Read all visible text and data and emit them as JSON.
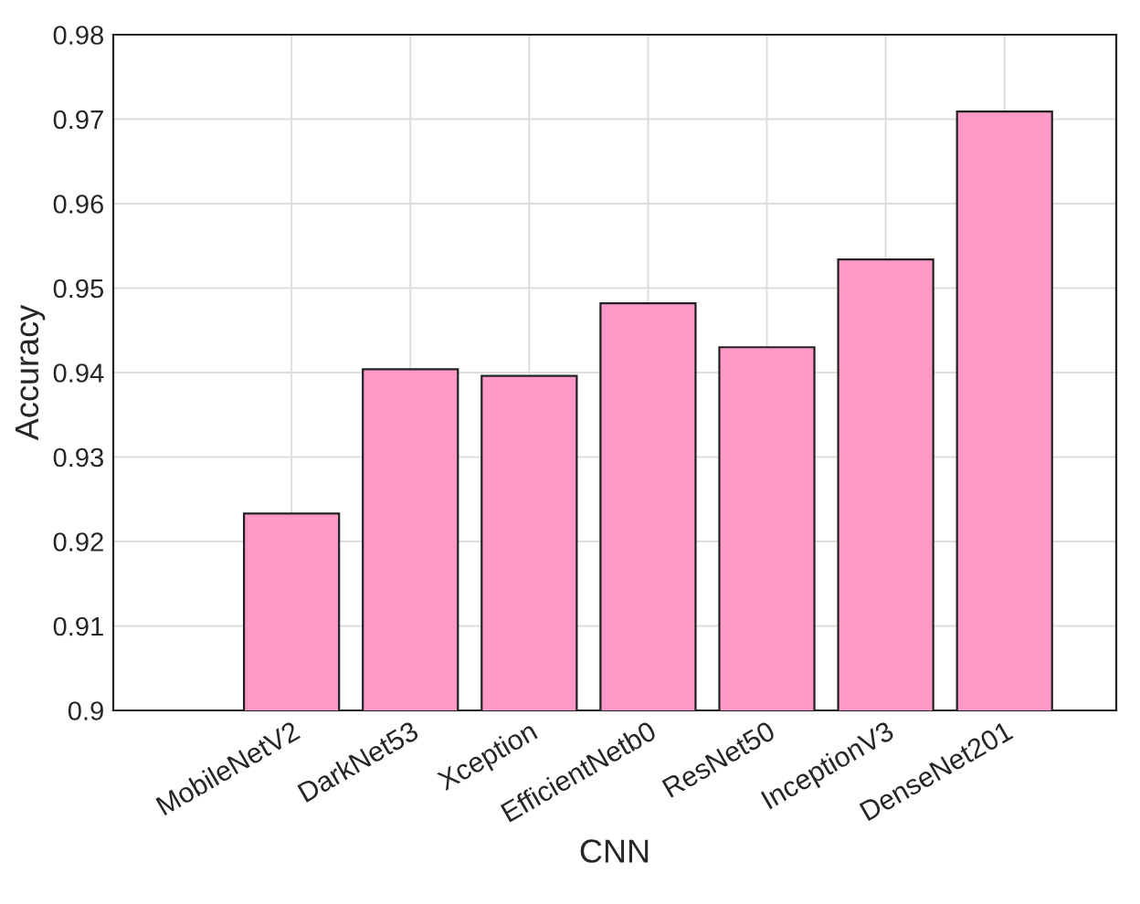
{
  "chart_data": {
    "type": "bar",
    "xlabel": "CNN",
    "ylabel": "Accuracy",
    "categories": [
      "MobileNetV2",
      "DarkNet53",
      "Xception",
      "EfficientNetb0",
      "ResNet50",
      "InceptionV3",
      "DenseNet201"
    ],
    "values": [
      0.9233,
      0.9404,
      0.9396,
      0.9482,
      0.943,
      0.9534,
      0.9709
    ],
    "color": "#ff99c8",
    "ylim": [
      0.9,
      0.98
    ],
    "yticks": [
      0.9,
      0.91,
      0.92,
      0.93,
      0.94,
      0.95,
      0.96,
      0.97,
      0.98
    ],
    "grid": true
  }
}
